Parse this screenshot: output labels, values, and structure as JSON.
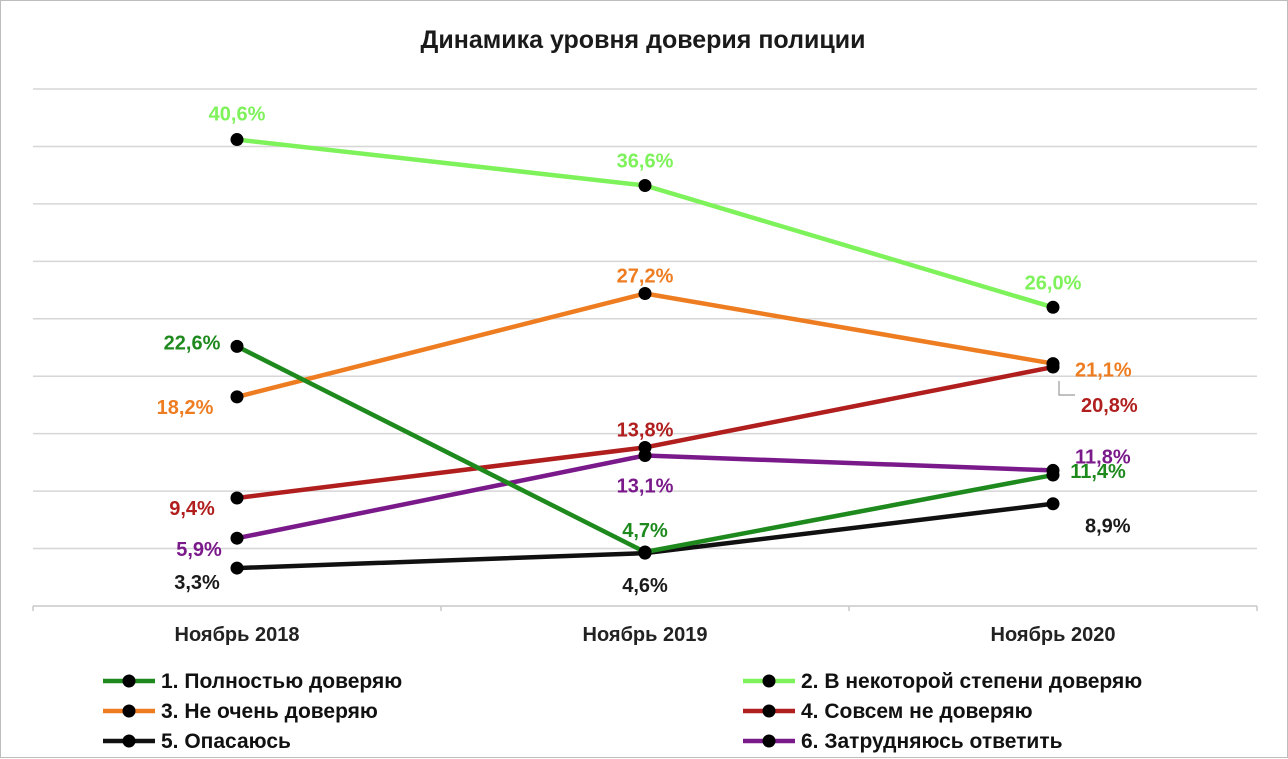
{
  "chart_data": {
    "type": "line",
    "title": "Динамика уровня доверия полиции",
    "categories": [
      "Ноябрь 2018",
      "Ноябрь 2019",
      "Ноябрь 2020"
    ],
    "ylim": [
      0,
      45
    ],
    "grid": true,
    "xlabel": "",
    "ylabel": "",
    "series": [
      {
        "name": "1. Полностью доверяю",
        "color": "#1e8a1e",
        "values": [
          22.6,
          4.7,
          11.4
        ],
        "labels": [
          "22,6%",
          "4,7%",
          "11,4%"
        ]
      },
      {
        "name": "2. В некоторой степени доверяю",
        "color": "#7ef25a",
        "values": [
          40.6,
          36.6,
          26.0
        ],
        "labels": [
          "40,6%",
          "36,6%",
          "26,0%"
        ]
      },
      {
        "name": "3. Не очень доверяю",
        "color": "#ee7d22",
        "values": [
          18.2,
          27.2,
          21.1
        ],
        "labels": [
          "18,2%",
          "27,2%",
          "21,1%"
        ]
      },
      {
        "name": "4. Совсем не доверяю",
        "color": "#b01e1e",
        "values": [
          9.4,
          13.8,
          20.8
        ],
        "labels": [
          "9,4%",
          "13,8%",
          "20,8%"
        ]
      },
      {
        "name": "5. Опасаюсь",
        "color": "#111111",
        "values": [
          3.3,
          4.6,
          8.9
        ],
        "labels": [
          "3,3%",
          "4,6%",
          "8,9%"
        ]
      },
      {
        "name": "6. Затрудняюсь ответить",
        "color": "#7a1a8a",
        "values": [
          5.9,
          13.1,
          11.8
        ],
        "labels": [
          "5,9%",
          "13,1%",
          "11,8%"
        ]
      }
    ],
    "marker_color": "#000000",
    "label_colors": [
      "#1e8a1e",
      "#7ef25a",
      "#ee7d22",
      "#b01e1e",
      "#1a1a1a",
      "#7a1a8a"
    ]
  }
}
